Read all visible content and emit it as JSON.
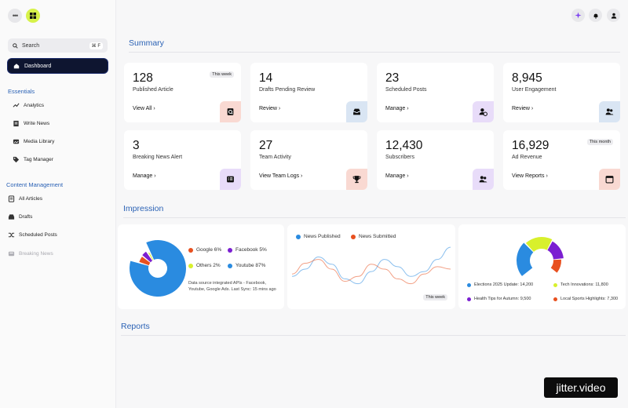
{
  "sidebar": {
    "search": {
      "label": "Search",
      "shortcut": "⌘ F"
    },
    "dashboard_label": "Dashboard",
    "essentials_title": "Essentials",
    "essentials": [
      {
        "label": "Analytics",
        "icon": "trend-icon"
      },
      {
        "label": "Write News",
        "icon": "document-icon"
      },
      {
        "label": "Media Library",
        "icon": "image-icon"
      },
      {
        "label": "Tag Manager",
        "icon": "tag-icon"
      }
    ],
    "content_title": "Content Management",
    "content": [
      {
        "label": "All Articles",
        "icon": "articles-icon"
      },
      {
        "label": "Drafts",
        "icon": "tray-icon"
      },
      {
        "label": "Scheduled Posts",
        "icon": "shuffle-icon"
      },
      {
        "label": "Breaking News",
        "icon": "breaking-icon"
      }
    ]
  },
  "header": {
    "icons": [
      "sparkle-icon",
      "bell-icon",
      "user-icon"
    ]
  },
  "summary": {
    "title": "Summary",
    "cards": [
      {
        "value": "128",
        "label": "Published Article",
        "action": "View All",
        "badge": "This week",
        "icon": "search-doc-icon",
        "tint": "#f9d9d2"
      },
      {
        "value": "14",
        "label": "Drafts Pending Review",
        "action": "Review",
        "icon": "inbox-icon",
        "tint": "#d9e5f3"
      },
      {
        "value": "23",
        "label": "Scheduled Posts",
        "action": "Manage",
        "icon": "user-clock-icon",
        "tint": "#e8dcf9"
      },
      {
        "value": "8,945",
        "label": "User Engagement",
        "action": "Review",
        "icon": "users-icon",
        "tint": "#d9e5f3"
      },
      {
        "value": "3",
        "label": "Breaking News Alert",
        "action": "Manage",
        "icon": "news-list-icon",
        "tint": "#e8dcf9"
      },
      {
        "value": "27",
        "label": "Team Activity",
        "action": "View Team Logs",
        "icon": "trophy-icon",
        "tint": "#f9d9d2"
      },
      {
        "value": "12,430",
        "label": "Subscribers",
        "action": "Manage",
        "icon": "users-icon",
        "tint": "#e8dcf9"
      },
      {
        "value": "16,929",
        "label": "Ad Revenue",
        "action": "View Reports",
        "badge": "This month",
        "icon": "calendar-icon",
        "tint": "#f9d9d2"
      }
    ]
  },
  "impression": {
    "title": "Impression",
    "traffic_legend": [
      {
        "label": "Google 6%",
        "color": "#e8501f"
      },
      {
        "label": "Facebook 5%",
        "color": "#7b1fd1"
      },
      {
        "label": "Others 2%",
        "color": "#d8f02c"
      },
      {
        "label": "Youtube 87%",
        "color": "#2a8be0"
      }
    ],
    "source_note": "Data source integrated APIs - Facebook, Youtube, Google Ads. Last Sync: 15 mins ago",
    "line_legend": [
      {
        "label": "News Published",
        "color": "#2a8be0"
      },
      {
        "label": "News Submitted",
        "color": "#e8501f"
      }
    ],
    "line_badge": "This week",
    "topic_legend": [
      {
        "label": "Elections 2025 Update: 14,200",
        "color": "#2a8be0"
      },
      {
        "label": "Tech Innovations: 11,800",
        "color": "#d8f02c"
      },
      {
        "label": "Health Tips for Autumn: 9,500",
        "color": "#7b1fd1"
      },
      {
        "label": "Local Sports Highlights: 7,300",
        "color": "#e8501f"
      }
    ]
  },
  "reports": {
    "title": "Reports"
  },
  "watermark": "jitter.video",
  "chart_data": [
    {
      "type": "pie",
      "categories": [
        "Google",
        "Facebook",
        "Others",
        "Youtube"
      ],
      "values": [
        6,
        5,
        2,
        87
      ],
      "colors": [
        "#e8501f",
        "#7b1fd1",
        "#d8f02c",
        "#2a8be0"
      ]
    },
    {
      "type": "line",
      "x": [
        0,
        1,
        2,
        3,
        4,
        5,
        6,
        7,
        8,
        9,
        10,
        11,
        12
      ],
      "series": [
        {
          "name": "News Published",
          "color": "#2a8be0",
          "values": [
            0.35,
            0.5,
            0.75,
            0.6,
            0.3,
            0.2,
            0.45,
            0.7,
            0.55,
            0.35,
            0.45,
            0.7,
            0.95
          ]
        },
        {
          "name": "News Submitted",
          "color": "#e8501f",
          "values": [
            0.4,
            0.62,
            0.7,
            0.5,
            0.25,
            0.35,
            0.6,
            0.5,
            0.3,
            0.2,
            0.4,
            0.55,
            0.5
          ]
        }
      ]
    },
    {
      "type": "pie",
      "categories": [
        "Elections 2025 Update",
        "Tech Innovations",
        "Health Tips for Autumn",
        "Local Sports Highlights"
      ],
      "values": [
        14200,
        11800,
        9500,
        7300
      ],
      "colors": [
        "#2a8be0",
        "#d8f02c",
        "#7b1fd1",
        "#e8501f"
      ]
    }
  ]
}
